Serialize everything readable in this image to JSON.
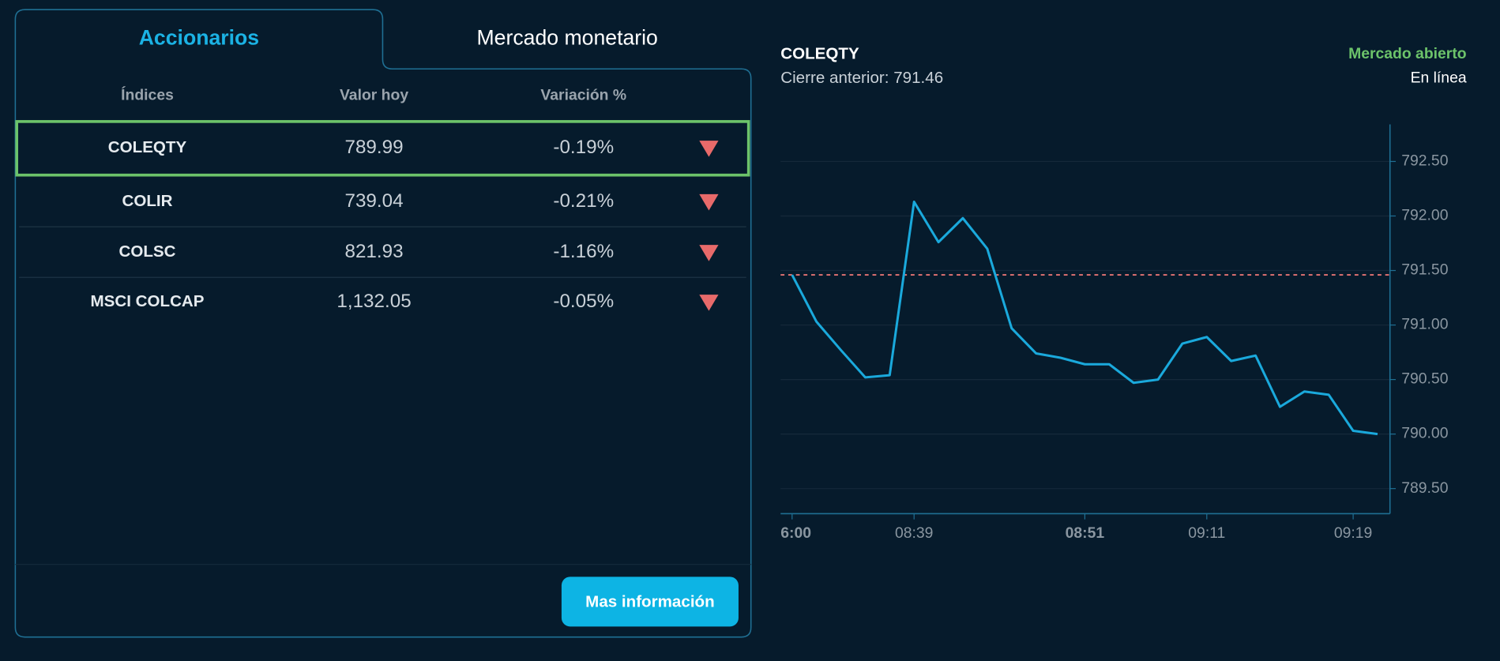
{
  "tabs": [
    "Accionarios",
    "Mercado monetario"
  ],
  "table": {
    "headers": [
      "Índices",
      "Valor hoy",
      "Variación %"
    ],
    "rows": [
      [
        "COLEQTY",
        "789.99",
        "-0.19%"
      ],
      [
        "COLIR",
        "739.04",
        "-0.21%"
      ],
      [
        "COLSC",
        "821.93",
        "-1.16%"
      ],
      [
        "MSCI COLCAP",
        "1,132.05",
        "-0.05%"
      ]
    ]
  },
  "button": "Mas información",
  "chart_data": {
    "type": "line",
    "title": "COLEQTY",
    "subtitle": "Cierre anterior: 791.46",
    "status": "Mercado abierto",
    "status_detail": "En línea",
    "reference": 791.46,
    "reference_color": "#e57373",
    "color": "#1aa9dc",
    "categories": [
      "6:00",
      null,
      null,
      null,
      null,
      "08:39",
      null,
      null,
      null,
      null,
      null,
      null,
      "08:51",
      null,
      null,
      null,
      null,
      "09:11",
      null,
      null,
      null,
      null,
      null,
      "09:19",
      null
    ],
    "values": [
      791.46,
      791.03,
      790.77,
      790.52,
      790.54,
      792.13,
      791.76,
      791.98,
      791.7,
      790.97,
      790.74,
      790.7,
      790.64,
      790.64,
      790.47,
      790.5,
      790.83,
      790.89,
      790.67,
      790.72,
      790.25,
      790.39,
      790.36,
      790.03,
      790.0
    ],
    "ylim": [
      789.27,
      792.84
    ],
    "yticks": [
      {
        "value": 789.5,
        "label": "789.50"
      },
      {
        "value": 790,
        "label": "790.00"
      },
      {
        "value": 790.5,
        "label": "790.50"
      },
      {
        "value": 791,
        "label": "791.00"
      },
      {
        "value": 791.5,
        "label": "791.50"
      },
      {
        "value": 792,
        "label": "792.00"
      },
      {
        "value": 792.5,
        "label": "792.50"
      }
    ],
    "grid": true
  }
}
